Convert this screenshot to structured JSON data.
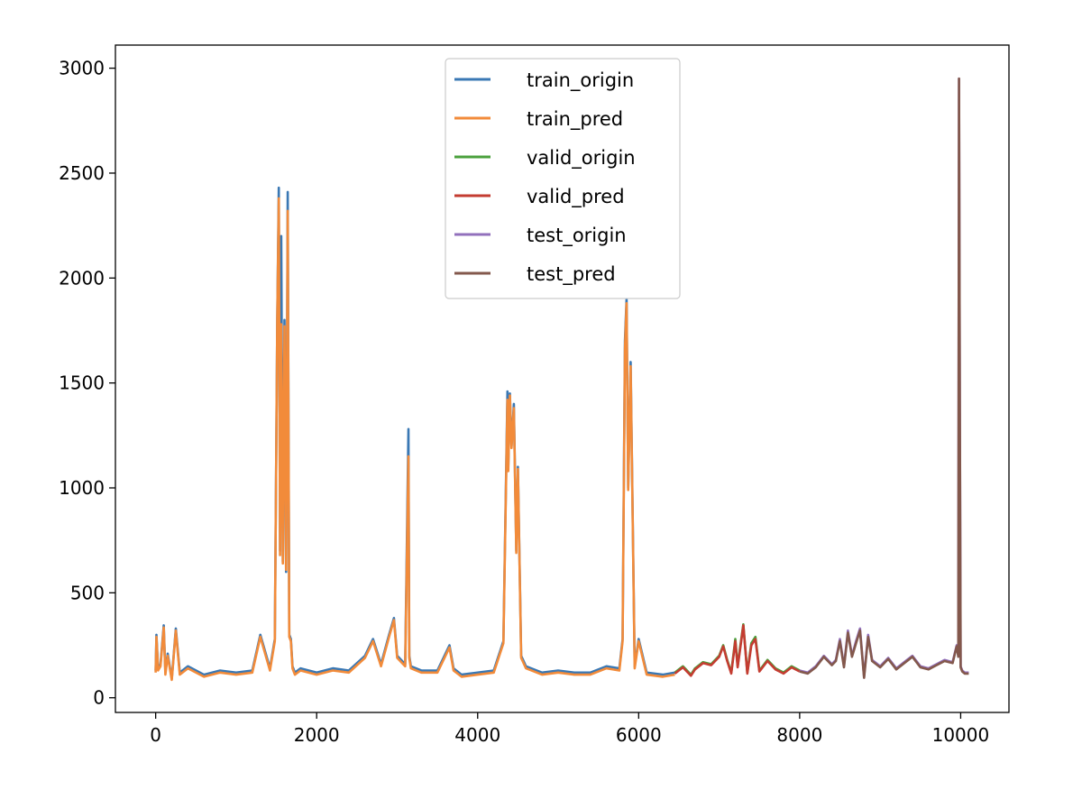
{
  "chart_data": {
    "type": "line",
    "xlim": [
      -500,
      10600
    ],
    "ylim": [
      -70,
      3110
    ],
    "x_ticks": [
      0,
      2000,
      4000,
      6000,
      8000,
      10000
    ],
    "y_ticks": [
      0,
      500,
      1000,
      1500,
      2000,
      2500,
      3000
    ],
    "grid": false,
    "legend_position": "top-center",
    "series": [
      {
        "name": "train_origin",
        "color": "#3a78b4",
        "x": [
          0,
          10,
          30,
          60,
          100,
          120,
          150,
          200,
          250,
          300,
          400,
          600,
          800,
          1000,
          1200,
          1300,
          1420,
          1480,
          1510,
          1530,
          1545,
          1560,
          1580,
          1600,
          1620,
          1640,
          1660,
          1680,
          1700,
          1730,
          1800,
          2000,
          2200,
          2400,
          2600,
          2700,
          2800,
          2900,
          2960,
          3000,
          3100,
          3140,
          3150,
          3170,
          3300,
          3500,
          3650,
          3700,
          3800,
          4000,
          4200,
          4320,
          4370,
          4380,
          4400,
          4420,
          4450,
          4480,
          4500,
          4540,
          4600,
          4800,
          5000,
          5200,
          5400,
          5600,
          5760,
          5800,
          5830,
          5850,
          5870,
          5900,
          5950,
          6000,
          6100,
          6300,
          6450
        ],
        "y": [
          130,
          300,
          140,
          160,
          345,
          120,
          210,
          90,
          330,
          120,
          150,
          110,
          130,
          120,
          130,
          300,
          140,
          280,
          1800,
          2430,
          700,
          2200,
          650,
          1800,
          600,
          2410,
          300,
          280,
          150,
          120,
          140,
          120,
          140,
          130,
          200,
          280,
          160,
          300,
          380,
          200,
          160,
          1280,
          200,
          150,
          130,
          130,
          250,
          140,
          110,
          120,
          130,
          270,
          1460,
          1100,
          1450,
          1200,
          1400,
          700,
          1100,
          200,
          150,
          120,
          130,
          120,
          120,
          150,
          140,
          280,
          1700,
          1900,
          1000,
          1600,
          150,
          280,
          120,
          110,
          120
        ]
      },
      {
        "name": "train_pred",
        "color": "#f28b3a",
        "x": [
          0,
          10,
          30,
          60,
          100,
          120,
          150,
          200,
          250,
          300,
          400,
          600,
          800,
          1000,
          1200,
          1300,
          1420,
          1480,
          1510,
          1530,
          1545,
          1560,
          1580,
          1600,
          1620,
          1640,
          1660,
          1680,
          1700,
          1730,
          1800,
          2000,
          2200,
          2400,
          2600,
          2700,
          2800,
          2900,
          2960,
          3000,
          3100,
          3140,
          3150,
          3170,
          3300,
          3500,
          3650,
          3700,
          3800,
          4000,
          4200,
          4320,
          4370,
          4380,
          4400,
          4420,
          4450,
          4480,
          4500,
          4540,
          4600,
          4800,
          5000,
          5200,
          5400,
          5600,
          5760,
          5800,
          5830,
          5850,
          5870,
          5900,
          5950,
          6000,
          6100,
          6300,
          6450
        ],
        "y": [
          120,
          290,
          130,
          150,
          335,
          110,
          200,
          85,
          320,
          110,
          140,
          100,
          120,
          110,
          120,
          290,
          130,
          270,
          1800,
          2380,
          680,
          1780,
          640,
          1770,
          610,
          2320,
          290,
          270,
          140,
          110,
          130,
          110,
          130,
          120,
          190,
          270,
          150,
          290,
          370,
          190,
          150,
          1150,
          190,
          140,
          120,
          120,
          240,
          130,
          100,
          110,
          120,
          260,
          1420,
          1080,
          1440,
          1190,
          1380,
          690,
          1090,
          190,
          140,
          110,
          120,
          110,
          110,
          140,
          130,
          270,
          1660,
          1880,
          990,
          1580,
          140,
          270,
          110,
          100,
          110
        ]
      },
      {
        "name": "valid_origin",
        "color": "#4aa03c",
        "x": [
          6450,
          6550,
          6650,
          6700,
          6800,
          6900,
          7000,
          7050,
          7100,
          7150,
          7200,
          7230,
          7260,
          7300,
          7350,
          7400,
          7450,
          7500,
          7600,
          7700,
          7800,
          7900,
          8000
        ],
        "y": [
          120,
          150,
          110,
          140,
          170,
          160,
          200,
          250,
          180,
          120,
          280,
          150,
          240,
          350,
          120,
          260,
          290,
          130,
          180,
          140,
          120,
          150,
          130
        ]
      },
      {
        "name": "valid_pred",
        "color": "#c43c31",
        "x": [
          6450,
          6550,
          6650,
          6700,
          6800,
          6900,
          7000,
          7050,
          7100,
          7150,
          7200,
          7230,
          7260,
          7300,
          7350,
          7400,
          7450,
          7500,
          7600,
          7700,
          7800,
          7900,
          8000
        ],
        "y": [
          115,
          145,
          105,
          135,
          165,
          155,
          195,
          245,
          175,
          115,
          270,
          145,
          230,
          345,
          115,
          250,
          280,
          125,
          175,
          135,
          115,
          145,
          125
        ]
      },
      {
        "name": "test_origin",
        "color": "#9270bc",
        "x": [
          8000,
          8100,
          8200,
          8300,
          8400,
          8450,
          8500,
          8550,
          8600,
          8650,
          8700,
          8750,
          8800,
          8850,
          8900,
          9000,
          9100,
          9200,
          9300,
          9400,
          9500,
          9600,
          9700,
          9800,
          9900,
          9950,
          9970,
          9980,
          9990,
          10000,
          10020,
          10050,
          10100
        ],
        "y": [
          130,
          120,
          150,
          200,
          160,
          180,
          280,
          150,
          320,
          200,
          270,
          330,
          100,
          300,
          180,
          150,
          190,
          140,
          170,
          200,
          150,
          140,
          160,
          180,
          170,
          250,
          200,
          2950,
          1400,
          150,
          130,
          120,
          120
        ]
      },
      {
        "name": "test_pred",
        "color": "#83584c",
        "x": [
          8000,
          8100,
          8200,
          8300,
          8400,
          8450,
          8500,
          8550,
          8600,
          8650,
          8700,
          8750,
          8800,
          8850,
          8900,
          9000,
          9100,
          9200,
          9300,
          9400,
          9500,
          9600,
          9700,
          9800,
          9900,
          9950,
          9970,
          9980,
          9990,
          10000,
          10020,
          10050,
          10100
        ],
        "y": [
          125,
          115,
          145,
          195,
          155,
          175,
          270,
          145,
          310,
          195,
          260,
          320,
          95,
          290,
          175,
          145,
          185,
          135,
          165,
          195,
          145,
          135,
          155,
          175,
          165,
          245,
          195,
          2950,
          1380,
          145,
          125,
          115,
          115
        ]
      }
    ]
  }
}
